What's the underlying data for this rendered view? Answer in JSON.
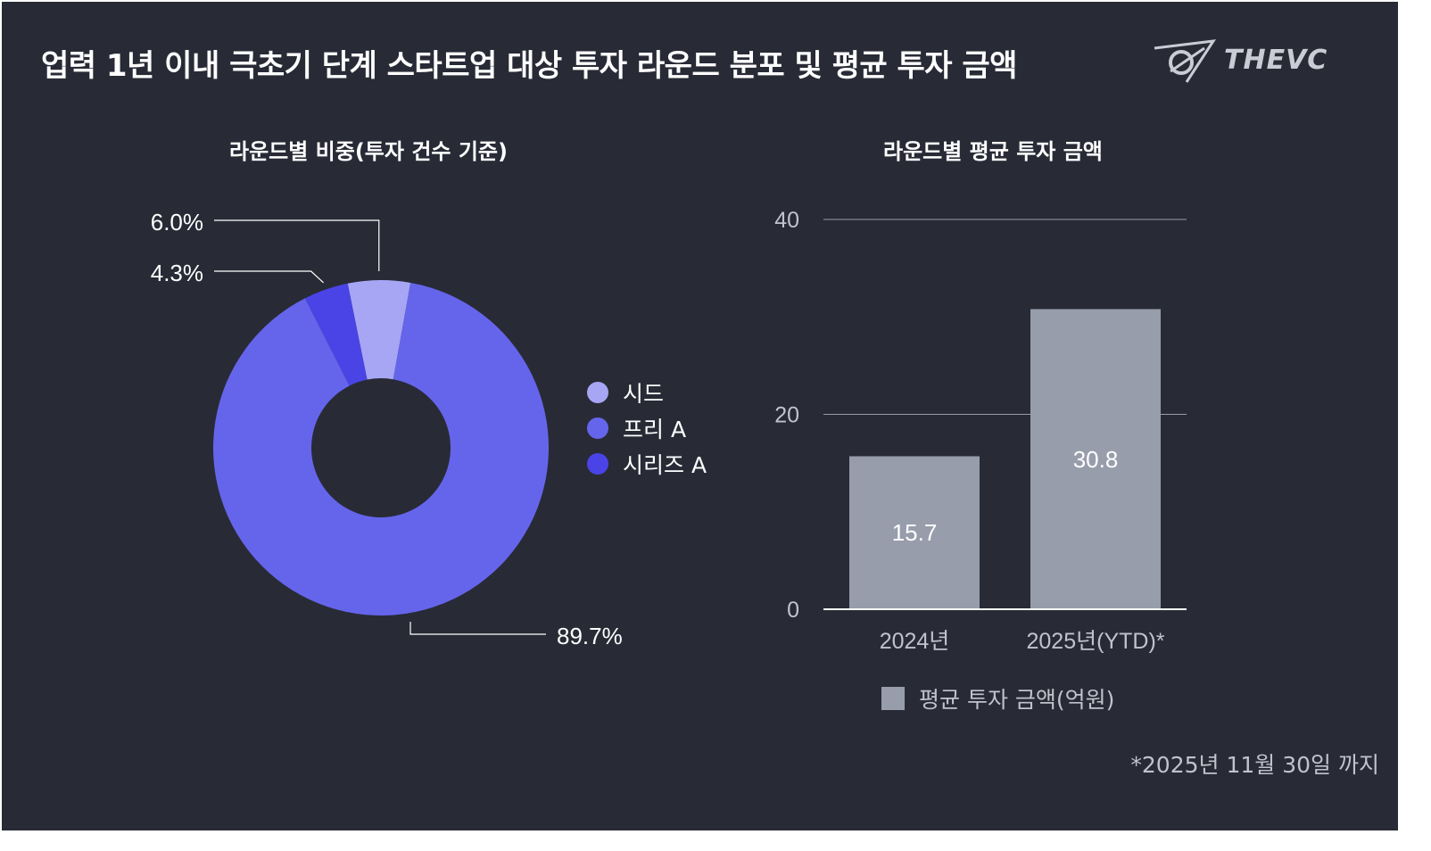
{
  "header": {
    "title": "업력 1년 이내 극초기 단계 스타트업 대상 투자 라운드 분포 및 평균 투자 금액",
    "logo_text": "THEVC"
  },
  "footnote": "*2025년 11월 30일 까지",
  "chart_data": [
    {
      "type": "pie",
      "title": "라운드별 비중(투자 건수 기준)",
      "donut": true,
      "series": [
        {
          "name": "시드",
          "value": 6.0,
          "label": "6.0%",
          "color": "#a7a6f5"
        },
        {
          "name": "프리 A",
          "value": 89.7,
          "label": "89.7%",
          "color": "#6565ec"
        },
        {
          "name": "시리즈 A",
          "value": 4.3,
          "label": "4.3%",
          "color": "#4a44e6"
        }
      ],
      "legend_position": "right"
    },
    {
      "type": "bar",
      "title": "라운드별 평균 투자 금액",
      "categories": [
        "2024년",
        "2025년(YTD)*"
      ],
      "series": [
        {
          "name": "평균 투자 금액(억원)",
          "values": [
            15.7,
            30.8
          ],
          "labels": [
            "15.7",
            "30.8"
          ],
          "color": "#979dab"
        }
      ],
      "ylim": [
        0,
        40
      ],
      "yticks": [
        "0",
        "20",
        "40"
      ],
      "grid": true,
      "legend_position": "bottom"
    }
  ],
  "colors": {
    "background": "#282b36",
    "text": "#ffffff",
    "muted": "#c0c3cc"
  }
}
